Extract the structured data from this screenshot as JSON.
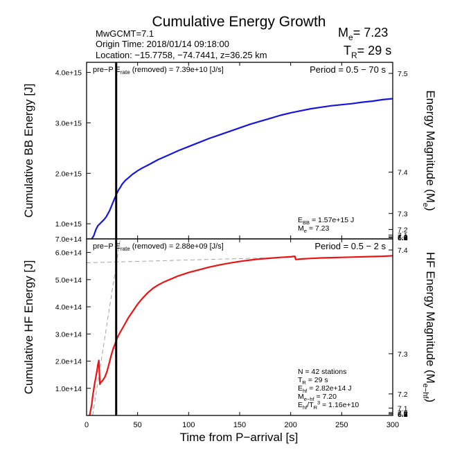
{
  "title": "Cumulative Energy Growth",
  "info": {
    "mw": "MwGCMT=7.1",
    "origin": "Origin Time: 2018/01/14 09:18:00",
    "location": "Location: −15.7758, −74.7441, z=36.25 km"
  },
  "summary": {
    "me_base": "M",
    "me_sub": "e",
    "me_value": "= 7.23",
    "tr_base": "T",
    "tr_sub": "R",
    "tr_value": "= 29 s"
  },
  "xlabel": "Time from P−arrival [s]",
  "chart_data": [
    {
      "type": "line",
      "id": "bb",
      "ylabel": "Cumulative BB Energy [J]",
      "y2label_base": "Energy Magnitude (M",
      "y2label_sub": "e",
      "y2label_end": ")",
      "xlim": [
        0,
        300
      ],
      "ylim": [
        700000000000000.0,
        4200000000000000.0
      ],
      "xticks": [
        0,
        50,
        100,
        150,
        200,
        250,
        300
      ],
      "yticks": [
        700000000000000.0,
        1000000000000000.0,
        2000000000000000.0,
        3000000000000000.0,
        4000000000000000.0
      ],
      "ytick_labels": [
        "7.0e+14",
        "1.0e+15",
        "2.0e+15",
        "3.0e+15",
        "4.0e+15"
      ],
      "y2ticks": [
        6.2,
        6.3,
        6.4,
        6.5,
        6.6,
        6.7,
        6.8,
        6.9,
        7.0,
        7.1,
        7.2,
        7.3,
        7.4,
        7.5
      ],
      "y2tick_labels": [
        "6.2",
        "6.3",
        "6.4",
        "6.5",
        "6.6",
        "6.7",
        "6.8",
        "6.9",
        "7.0",
        "7.1",
        "7.2",
        "7.3",
        "7.4",
        "7.5"
      ],
      "vline_x": 29,
      "pre_label": "pre−P E",
      "rate_sub": "rate",
      "pre_text": " (removed) = 7.39e+10 [J/s]",
      "period": "Period = 0.5 − 70 s",
      "notes": [
        {
          "base": "E",
          "sub": "BB",
          "text": " = 1.57e+15 J"
        },
        {
          "base": "M",
          "sub": "e",
          "text": " = 7.23"
        }
      ],
      "series": [
        {
          "color": "#1515dd",
          "x": [
            5,
            7,
            9,
            11,
            13,
            15,
            17,
            19,
            21,
            23,
            25,
            27,
            29,
            31,
            33,
            35,
            38,
            41,
            45,
            50,
            55,
            60,
            70,
            80,
            90,
            100,
            110,
            120,
            130,
            140,
            150,
            160,
            170,
            180,
            190,
            200,
            210,
            220,
            230,
            240,
            250,
            260,
            270,
            280,
            290,
            300
          ],
          "y": [
            700000000000000.0,
            760000000000000.0,
            880000000000000.0,
            960000000000000.0,
            1000000000000000.0,
            1040000000000000.0,
            1080000000000000.0,
            1130000000000000.0,
            1200000000000000.0,
            1280000000000000.0,
            1380000000000000.0,
            1480000000000000.0,
            1570000000000000.0,
            1660000000000000.0,
            1720000000000000.0,
            1790000000000000.0,
            1860000000000000.0,
            1910000000000000.0,
            1980000000000000.0,
            2050000000000000.0,
            2110000000000000.0,
            2160000000000000.0,
            2270000000000000.0,
            2360000000000000.0,
            2450000000000000.0,
            2530000000000000.0,
            2610000000000000.0,
            2690000000000000.0,
            2760000000000000.0,
            2830000000000000.0,
            2900000000000000.0,
            2970000000000000.0,
            3030000000000000.0,
            3090000000000000.0,
            3150000000000000.0,
            3200000000000000.0,
            3240000000000000.0,
            3280000000000000.0,
            3310000000000000.0,
            3340000000000000.0,
            3360000000000000.0,
            3380000000000000.0,
            3410000000000000.0,
            3430000000000000.0,
            3460000000000000.0,
            3480000000000000.0
          ]
        }
      ]
    },
    {
      "type": "line",
      "id": "hf",
      "ylabel": "Cumulative HF Energy [J]",
      "y2label_base": "HF Energy Magnitude (M",
      "y2label_sub": "e−hf",
      "y2label_end": ")",
      "xlim": [
        0,
        300
      ],
      "ylim": [
        0,
        650000000000000.0
      ],
      "xticks": [
        0,
        50,
        100,
        150,
        200,
        250,
        300
      ],
      "xtick_labels": [
        "0",
        "50",
        "100",
        "150",
        "200",
        "250",
        "300"
      ],
      "yticks": [
        100000000000000.0,
        200000000000000.0,
        300000000000000.0,
        400000000000000.0,
        500000000000000.0,
        600000000000000.0
      ],
      "ytick_labels": [
        "1.0e+14",
        "2.0e+14",
        "3.0e+14",
        "4.0e+14",
        "5.0e+14",
        "6.0e+14"
      ],
      "y2ticks": [
        6.2,
        6.3,
        6.4,
        6.5,
        6.6,
        6.7,
        6.8,
        6.9,
        7.0,
        7.1,
        7.2,
        7.3,
        7.4
      ],
      "y2tick_labels": [
        "6.2",
        "6.3",
        "6.4",
        "6.5",
        "6.6",
        "6.7",
        "6.8",
        "6.9",
        "7.0",
        "7.1",
        "7.2",
        "7.3",
        "7.4"
      ],
      "vline_x": 29,
      "pre_label": "pre−P E",
      "rate_sub": "rate",
      "pre_text": " (removed) = 2.88e+09 [J/s]",
      "period": "Period = 0.5 − 2 s",
      "notes": [
        {
          "base": "N = 42 stations",
          "sub": "",
          "text": ""
        },
        {
          "base": "T",
          "sub": "R",
          "text": " = 29  s"
        },
        {
          "base": "E",
          "sub": "hf",
          "text": " = 2.82e+14 J"
        },
        {
          "base": "M",
          "sub": "e−hf",
          "text": " = 7.20"
        },
        {
          "base": "E",
          "sub": "hf",
          "text": "/T",
          "sub2": "R",
          "sup2": "3",
          "text2": " =  1.16e+10"
        }
      ],
      "reference_lines": [
        {
          "style": "dashed",
          "color": "#999999",
          "x": [
            0,
            205
          ],
          "y": [
            562000000000000.0,
            583000000000000.0
          ]
        },
        {
          "style": "dashed",
          "color": "#999999",
          "x": [
            6,
            33
          ],
          "y": [
            0,
            650000000000000.0
          ]
        }
      ],
      "series": [
        {
          "color": "#ee1111",
          "x": [
            3,
            4,
            5,
            6,
            7,
            8,
            9,
            10,
            11,
            12,
            13,
            14,
            16,
            18,
            20,
            22,
            24,
            26,
            28,
            30,
            32,
            35,
            38,
            41,
            45,
            50,
            55,
            60,
            65,
            70,
            75,
            80,
            90,
            100,
            110,
            120,
            130,
            140,
            150,
            160,
            170,
            180,
            190,
            200,
            204,
            205,
            210,
            220,
            230,
            240,
            250,
            260,
            270,
            280,
            290,
            300
          ],
          "y": [
            0,
            20000000000000.0,
            40000000000000.0,
            70000000000000.0,
            95000000000000.0,
            120000000000000.0,
            140000000000000.0,
            160000000000000.0,
            185000000000000.0,
            203000000000000.0,
            115000000000000.0,
            122000000000000.0,
            130000000000000.0,
            142000000000000.0,
            162000000000000.0,
            190000000000000.0,
            220000000000000.0,
            245000000000000.0,
            265000000000000.0,
            285000000000000.0,
            300000000000000.0,
            320000000000000.0,
            340000000000000.0,
            360000000000000.0,
            382000000000000.0,
            410000000000000.0,
            432000000000000.0,
            452000000000000.0,
            468000000000000.0,
            480000000000000.0,
            490000000000000.0,
            498000000000000.0,
            514000000000000.0,
            526000000000000.0,
            536000000000000.0,
            546000000000000.0,
            554000000000000.0,
            561000000000000.0,
            567000000000000.0,
            572000000000000.0,
            576000000000000.0,
            579000000000000.0,
            582000000000000.0,
            584000000000000.0,
            586000000000000.0,
            574000000000000.0,
            576000000000000.0,
            578000000000000.0,
            580000000000000.0,
            581000000000000.0,
            582000000000000.0,
            583000000000000.0,
            584000000000000.0,
            585000000000000.0,
            586000000000000.0,
            588000000000000.0
          ]
        }
      ]
    }
  ]
}
